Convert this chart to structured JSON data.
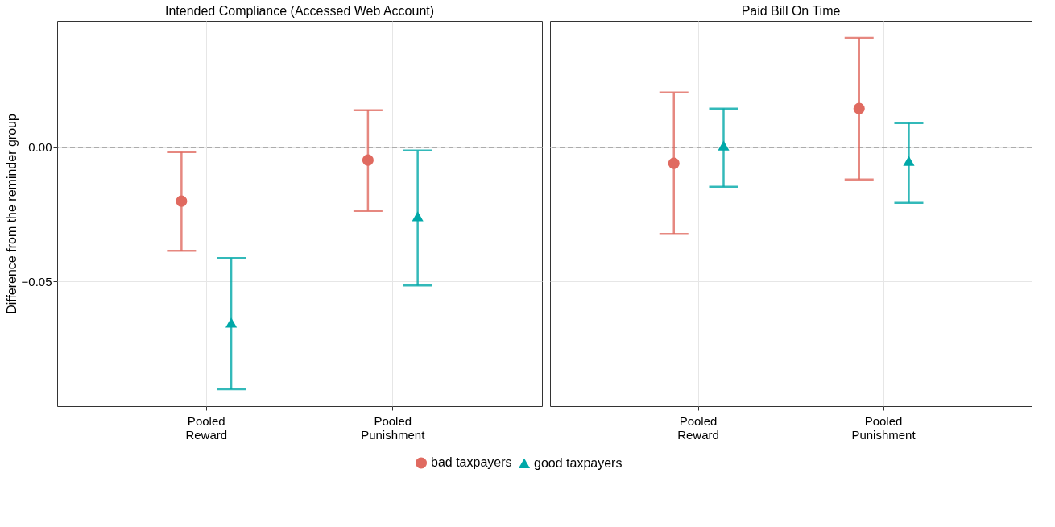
{
  "chart_data": [
    {
      "type": "scatter",
      "title": "Intended Compliance (Accessed Web Account)",
      "ylabel": "Difference from the reminder group",
      "categories": [
        "Pooled\nReward",
        "Pooled\nPunishment"
      ],
      "ylim": [
        -0.0964,
        0.047
      ],
      "yticks": [
        {
          "value": -0.05,
          "label": "−0.05"
        },
        {
          "value": 0,
          "label": "0.00"
        }
      ],
      "grid": true,
      "legend": "bottom",
      "ref_lines": [
        {
          "axis": "y",
          "value": 0,
          "label": null,
          "color": "#000000",
          "line_style": "dashed"
        }
      ],
      "series": [
        {
          "name": "bad taxpayers",
          "color": "#e06a60",
          "marker": "circle",
          "values": [
            -0.0201,
            -0.0048
          ],
          "errors": [
            [
              -0.0386,
              -0.0018
            ],
            [
              -0.0237,
              0.0138
            ]
          ]
        },
        {
          "name": "good taxpayers",
          "color": "#00a8a8",
          "marker": "triangle",
          "values": [
            -0.0653,
            -0.0257
          ],
          "errors": [
            [
              -0.0901,
              -0.0413
            ],
            [
              -0.0515,
              -0.0012
            ]
          ]
        }
      ]
    },
    {
      "type": "scatter",
      "title": "Paid Bill On Time",
      "categories": [
        "Pooled\nReward",
        "Pooled\nPunishment"
      ],
      "ylim": [
        -0.0964,
        0.047
      ],
      "yticks": [
        -0.05,
        0
      ],
      "tick_labels": "x",
      "grid": true,
      "legend": "bottom",
      "ref_lines": [
        {
          "axis": "y",
          "value": 0,
          "label": null,
          "color": "#000000",
          "line_style": "dashed"
        }
      ],
      "series": [
        {
          "name": "bad taxpayers",
          "color": "#e06a60",
          "marker": "circle",
          "values": [
            -0.006,
            0.0144
          ],
          "errors": [
            [
              -0.0323,
              0.0204
            ],
            [
              -0.012,
              0.0407
            ]
          ]
        },
        {
          "name": "good taxpayers",
          "color": "#00a8a8",
          "marker": "triangle",
          "values": [
            0.0006,
            -0.0051
          ],
          "errors": [
            [
              -0.0147,
              0.0144
            ],
            [
              -0.0207,
              0.009
            ]
          ]
        }
      ]
    }
  ]
}
